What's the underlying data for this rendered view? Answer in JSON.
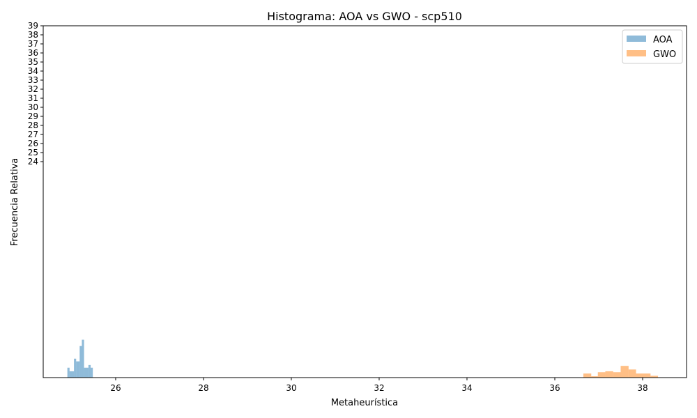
{
  "chart_data": {
    "type": "bar",
    "title": "Histograma: AOA vs GWO - scp510",
    "xlabel": "Metaheurística",
    "ylabel": "Frecuencia Relativa",
    "xlim": [
      24.35,
      39.0
    ],
    "ylim": [
      0,
      39
    ],
    "x_ticks": [
      26,
      28,
      30,
      32,
      34,
      36,
      38
    ],
    "y_ticks": [
      24,
      25,
      26,
      27,
      28,
      29,
      30,
      31,
      32,
      33,
      34,
      35,
      36,
      37,
      38,
      39
    ],
    "grid": false,
    "legend_position": "top-right",
    "series": [
      {
        "name": "AOA",
        "color": "#1f77b4",
        "opacity": 0.5,
        "bins": [
          {
            "x0": 24.9,
            "x1": 24.95,
            "value": 1.1
          },
          {
            "x0": 24.95,
            "x1": 25.05,
            "value": 0.7
          },
          {
            "x0": 25.05,
            "x1": 25.1,
            "value": 2.1
          },
          {
            "x0": 25.1,
            "x1": 25.18,
            "value": 1.8
          },
          {
            "x0": 25.18,
            "x1": 25.23,
            "value": 3.5
          },
          {
            "x0": 25.23,
            "x1": 25.28,
            "value": 4.2
          },
          {
            "x0": 25.28,
            "x1": 25.38,
            "value": 1.1
          },
          {
            "x0": 25.38,
            "x1": 25.43,
            "value": 1.4
          },
          {
            "x0": 25.43,
            "x1": 25.48,
            "value": 1.1
          }
        ]
      },
      {
        "name": "GWO",
        "color": "#ff7f0e",
        "opacity": 0.5,
        "bins": [
          {
            "x0": 36.65,
            "x1": 36.83,
            "value": 0.45
          },
          {
            "x0": 36.83,
            "x1": 36.98,
            "value": 0.15
          },
          {
            "x0": 36.98,
            "x1": 37.15,
            "value": 0.6
          },
          {
            "x0": 37.15,
            "x1": 37.33,
            "value": 0.7
          },
          {
            "x0": 37.33,
            "x1": 37.5,
            "value": 0.6
          },
          {
            "x0": 37.5,
            "x1": 37.68,
            "value": 1.3
          },
          {
            "x0": 37.68,
            "x1": 37.85,
            "value": 0.9
          },
          {
            "x0": 37.85,
            "x1": 38.18,
            "value": 0.45
          },
          {
            "x0": 38.18,
            "x1": 38.35,
            "value": 0.2
          }
        ]
      }
    ]
  }
}
